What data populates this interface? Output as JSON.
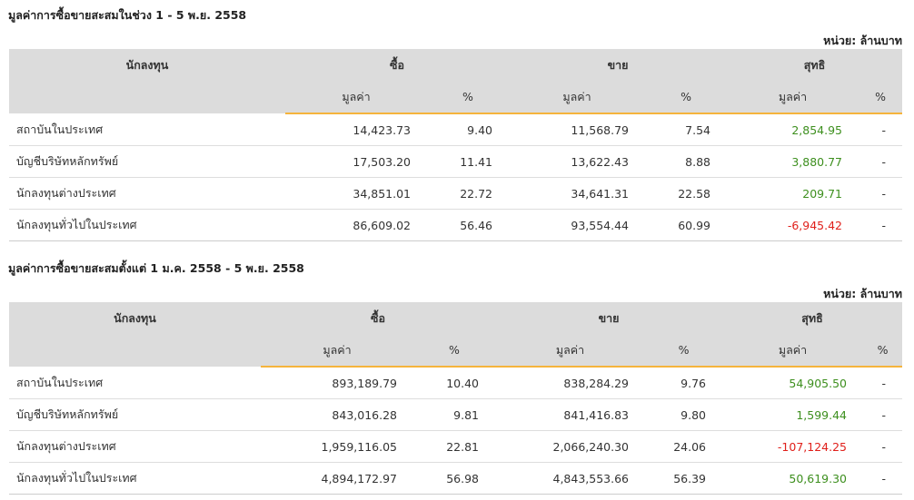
{
  "sections": [
    {
      "title": "มูลค่าการซื้อขายสะสมในช่วง 1 - 5 พ.ย. 2558",
      "unit": "หน่วย: ล้านบาท",
      "header": {
        "investor": "นักลงทุน",
        "groups": [
          "ซื้อ",
          "ขาย",
          "สุทธิ"
        ],
        "sub": [
          "มูลค่า",
          "%",
          "มูลค่า",
          "%",
          "มูลค่า",
          "%"
        ]
      },
      "rows": [
        [
          "สถาบันในประเทศ",
          "14,423.73",
          "9.40",
          "11,568.79",
          "7.54",
          "2,854.95",
          "-"
        ],
        [
          "บัญชีบริษัทหลักทรัพย์",
          "17,503.20",
          "11.41",
          "13,622.43",
          "8.88",
          "3,880.77",
          "-"
        ],
        [
          "นักลงทุนต่างประเทศ",
          "34,851.01",
          "22.72",
          "34,641.31",
          "22.58",
          "209.71",
          "-"
        ],
        [
          "นักลงทุนทั่วไปในประเทศ",
          "86,609.02",
          "56.46",
          "93,554.44",
          "60.99",
          "-6,945.42",
          "-"
        ]
      ]
    },
    {
      "title": "มูลค่าการซื้อขายสะสมตั้งแต่ 1 ม.ค. 2558 - 5 พ.ย. 2558",
      "unit": "หน่วย: ล้านบาท",
      "header": {
        "investor": "นักลงทุน",
        "groups": [
          "ซื้อ",
          "ขาย",
          "สุทธิ"
        ],
        "sub": [
          "มูลค่า",
          "%",
          "มูลค่า",
          "%",
          "มูลค่า",
          "%"
        ]
      },
      "rows": [
        [
          "สถาบันในประเทศ",
          "893,189.79",
          "10.40",
          "838,284.29",
          "9.76",
          "54,905.50",
          "-"
        ],
        [
          "บัญชีบริษัทหลักทรัพย์",
          "843,016.28",
          "9.81",
          "841,416.83",
          "9.80",
          "1,599.44",
          "-"
        ],
        [
          "นักลงทุนต่างประเทศ",
          "1,959,116.05",
          "22.81",
          "2,066,240.30",
          "24.06",
          "-107,124.25",
          "-"
        ],
        [
          "นักลงทุนทั่วไปในประเทศ",
          "4,894,172.97",
          "56.98",
          "4,843,553.66",
          "56.39",
          "50,619.30",
          "-"
        ]
      ]
    }
  ]
}
